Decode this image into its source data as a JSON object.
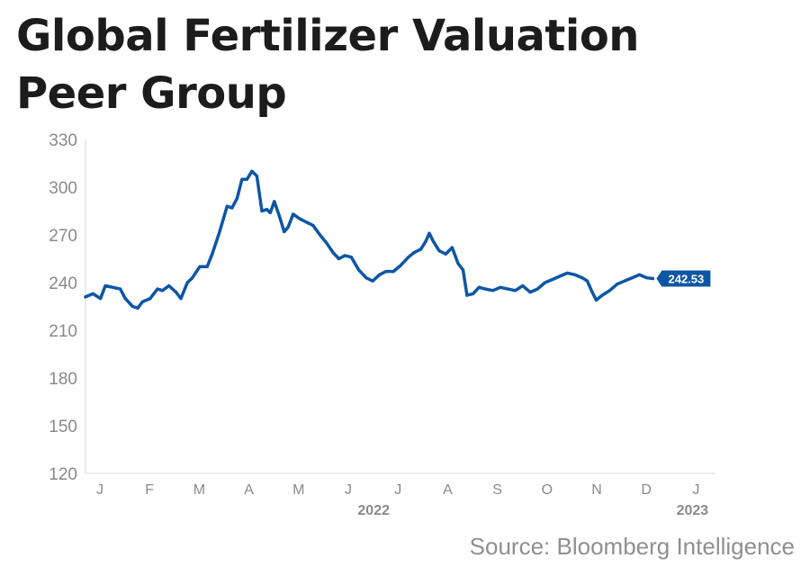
{
  "header": {
    "title": "Global Fertilizer Valuation Peer Group"
  },
  "footer": {
    "source": "Source: Bloomberg Intelligence"
  },
  "colors": {
    "line": "#0d56a6",
    "axis": "#d9d9d9",
    "tick_text": "#8a8a8a",
    "title": "#1c1c1c",
    "source": "#8f8f8f"
  },
  "chart_data": {
    "type": "line",
    "title": "Global Fertilizer Valuation Peer Group",
    "xlabel": "",
    "ylabel": "",
    "ylim": [
      120,
      330
    ],
    "y_ticks": [
      120,
      150,
      180,
      210,
      240,
      270,
      300,
      330
    ],
    "x_ticks": [
      "J",
      "F",
      "M",
      "A",
      "M",
      "J",
      "J",
      "A",
      "S",
      "O",
      "N",
      "D",
      "J"
    ],
    "x_year_labels": [
      {
        "label": "2022",
        "month_index": 6
      },
      {
        "label": "2023",
        "month_index": 12
      }
    ],
    "grid": false,
    "last_value_label": "242.53",
    "series": [
      {
        "values": [
          {
            "x": 0.0,
            "y": 231
          },
          {
            "x": 0.15,
            "y": 233
          },
          {
            "x": 0.3,
            "y": 230
          },
          {
            "x": 0.4,
            "y": 238
          },
          {
            "x": 0.55,
            "y": 237
          },
          {
            "x": 0.7,
            "y": 236
          },
          {
            "x": 0.8,
            "y": 230
          },
          {
            "x": 0.95,
            "y": 225
          },
          {
            "x": 1.05,
            "y": 224
          },
          {
            "x": 1.15,
            "y": 228
          },
          {
            "x": 1.3,
            "y": 230
          },
          {
            "x": 1.45,
            "y": 236
          },
          {
            "x": 1.55,
            "y": 235
          },
          {
            "x": 1.68,
            "y": 238
          },
          {
            "x": 1.82,
            "y": 234
          },
          {
            "x": 1.92,
            "y": 230
          },
          {
            "x": 2.05,
            "y": 240
          },
          {
            "x": 2.15,
            "y": 243
          },
          {
            "x": 2.3,
            "y": 250
          },
          {
            "x": 2.45,
            "y": 250
          },
          {
            "x": 2.55,
            "y": 258
          },
          {
            "x": 2.7,
            "y": 272
          },
          {
            "x": 2.85,
            "y": 288
          },
          {
            "x": 2.95,
            "y": 287
          },
          {
            "x": 3.05,
            "y": 293
          },
          {
            "x": 3.15,
            "y": 305
          },
          {
            "x": 3.25,
            "y": 305
          },
          {
            "x": 3.35,
            "y": 310
          },
          {
            "x": 3.45,
            "y": 307
          },
          {
            "x": 3.55,
            "y": 285
          },
          {
            "x": 3.65,
            "y": 286
          },
          {
            "x": 3.72,
            "y": 284
          },
          {
            "x": 3.8,
            "y": 291
          },
          {
            "x": 3.9,
            "y": 282
          },
          {
            "x": 4.0,
            "y": 272
          },
          {
            "x": 4.08,
            "y": 275
          },
          {
            "x": 4.18,
            "y": 283
          },
          {
            "x": 4.32,
            "y": 280
          },
          {
            "x": 4.45,
            "y": 278
          },
          {
            "x": 4.58,
            "y": 276
          },
          {
            "x": 4.72,
            "y": 270
          },
          {
            "x": 4.85,
            "y": 265
          },
          {
            "x": 4.98,
            "y": 259
          },
          {
            "x": 5.1,
            "y": 255
          },
          {
            "x": 5.22,
            "y": 257
          },
          {
            "x": 5.35,
            "y": 256
          },
          {
            "x": 5.5,
            "y": 248
          },
          {
            "x": 5.65,
            "y": 243
          },
          {
            "x": 5.78,
            "y": 241
          },
          {
            "x": 5.92,
            "y": 245
          },
          {
            "x": 6.05,
            "y": 247
          },
          {
            "x": 6.2,
            "y": 247
          },
          {
            "x": 6.35,
            "y": 251
          },
          {
            "x": 6.5,
            "y": 256
          },
          {
            "x": 6.62,
            "y": 259
          },
          {
            "x": 6.75,
            "y": 261
          },
          {
            "x": 6.85,
            "y": 266
          },
          {
            "x": 6.92,
            "y": 271
          },
          {
            "x": 7.0,
            "y": 266
          },
          {
            "x": 7.12,
            "y": 260
          },
          {
            "x": 7.25,
            "y": 258
          },
          {
            "x": 7.38,
            "y": 262
          },
          {
            "x": 7.5,
            "y": 252
          },
          {
            "x": 7.6,
            "y": 248
          },
          {
            "x": 7.68,
            "y": 232
          },
          {
            "x": 7.8,
            "y": 233
          },
          {
            "x": 7.92,
            "y": 237
          },
          {
            "x": 8.05,
            "y": 236
          },
          {
            "x": 8.2,
            "y": 235
          },
          {
            "x": 8.35,
            "y": 237
          },
          {
            "x": 8.5,
            "y": 236
          },
          {
            "x": 8.65,
            "y": 235
          },
          {
            "x": 8.8,
            "y": 238
          },
          {
            "x": 8.95,
            "y": 234
          },
          {
            "x": 9.1,
            "y": 236
          },
          {
            "x": 9.25,
            "y": 240
          },
          {
            "x": 9.4,
            "y": 242
          },
          {
            "x": 9.55,
            "y": 244
          },
          {
            "x": 9.7,
            "y": 246
          },
          {
            "x": 9.85,
            "y": 245
          },
          {
            "x": 10.0,
            "y": 243
          },
          {
            "x": 10.1,
            "y": 241
          },
          {
            "x": 10.2,
            "y": 234
          },
          {
            "x": 10.28,
            "y": 229
          },
          {
            "x": 10.4,
            "y": 232
          },
          {
            "x": 10.55,
            "y": 235
          },
          {
            "x": 10.7,
            "y": 239
          },
          {
            "x": 10.85,
            "y": 241
          },
          {
            "x": 11.0,
            "y": 243
          },
          {
            "x": 11.15,
            "y": 245
          },
          {
            "x": 11.3,
            "y": 243
          },
          {
            "x": 11.42,
            "y": 242.53
          }
        ]
      }
    ]
  }
}
